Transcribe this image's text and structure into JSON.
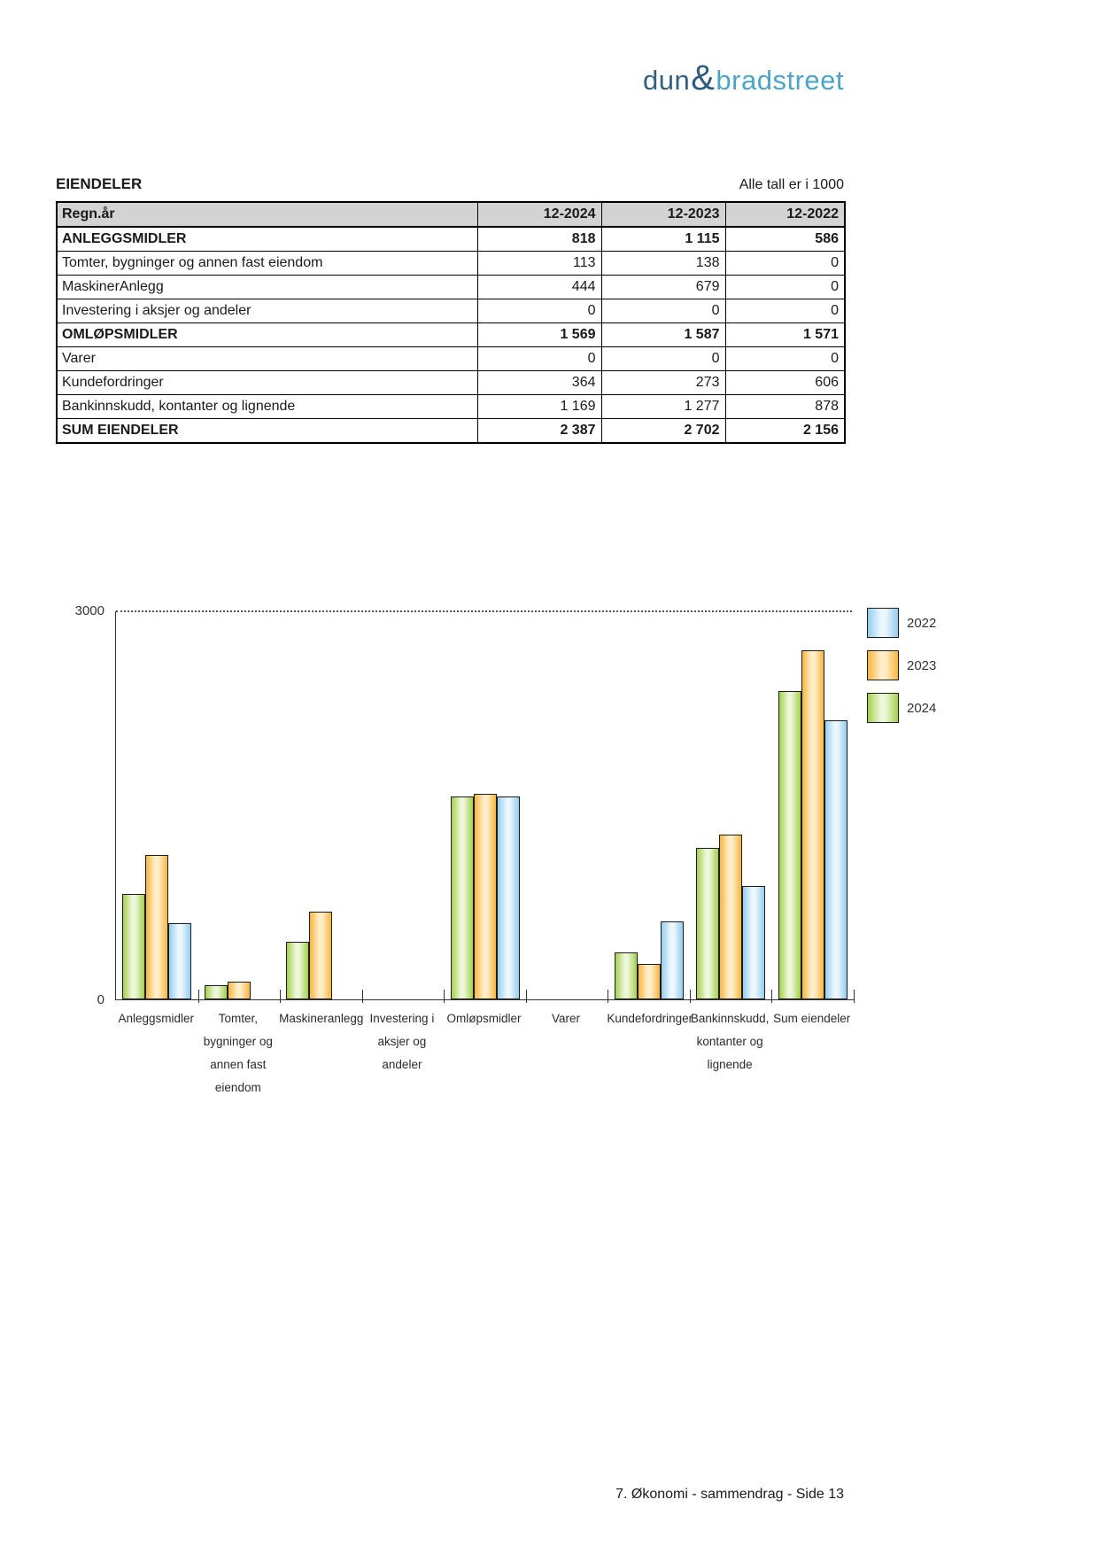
{
  "logo": {
    "part1": "dun",
    "amp": "&",
    "part2": "bradstreet"
  },
  "section": {
    "title": "EIENDELER",
    "note": "Alle tall er i 1000"
  },
  "table": {
    "headers": [
      "Regn.år",
      "12-2024",
      "12-2023",
      "12-2022"
    ],
    "rows": [
      {
        "label": "ANLEGGSMIDLER",
        "values": [
          "818",
          "1 115",
          "586"
        ],
        "bold": true
      },
      {
        "label": "Tomter, bygninger og annen fast eiendom",
        "values": [
          "113",
          "138",
          "0"
        ],
        "bold": false
      },
      {
        "label": "MaskinerAnlegg",
        "values": [
          "444",
          "679",
          "0"
        ],
        "bold": false
      },
      {
        "label": "Investering i aksjer og andeler",
        "values": [
          "0",
          "0",
          "0"
        ],
        "bold": false
      },
      {
        "label": "OMLØPSMIDLER",
        "values": [
          "1 569",
          "1 587",
          "1 571"
        ],
        "bold": true
      },
      {
        "label": "Varer",
        "values": [
          "0",
          "0",
          "0"
        ],
        "bold": false
      },
      {
        "label": "Kundefordringer",
        "values": [
          "364",
          "273",
          "606"
        ],
        "bold": false
      },
      {
        "label": "Bankinnskudd, kontanter og lignende",
        "values": [
          "1 169",
          "1 277",
          "878"
        ],
        "bold": false
      },
      {
        "label": "SUM EIENDELER",
        "values": [
          "2 387",
          "2 702",
          "2 156"
        ],
        "bold": true
      }
    ]
  },
  "chart_data": {
    "type": "bar",
    "title": "",
    "xlabel": "",
    "ylabel": "",
    "ylim": [
      0,
      3000
    ],
    "yticks": [
      "3000",
      "0"
    ],
    "grid": "dotted line at y=3000 only",
    "legend_position": "top-right",
    "legend_order": [
      "2022",
      "2023",
      "2024"
    ],
    "bar_draw_order": [
      "2024",
      "2023",
      "2022"
    ],
    "categories": [
      "Anleggsmidler",
      "Tomter, bygninger og annen fast eiendom",
      "Maskineranlegg",
      "Investering i aksjer og andeler",
      "Omløpsmidler",
      "Varer",
      "Kundefordringer",
      "Bankinnskudd, kontanter og lignende",
      "Sum eiendeler"
    ],
    "category_label_lines": [
      [
        "Anleggsmidler"
      ],
      [
        "Tomter,",
        "bygninger og",
        "annen fast",
        "eiendom"
      ],
      [
        "Maskineranlegg"
      ],
      [
        "Investering i",
        "aksjer og",
        "andeler"
      ],
      [
        "Omløpsmidler"
      ],
      [
        "Varer"
      ],
      [
        "Kundefordringer"
      ],
      [
        "Bankinnskudd,",
        "kontanter og",
        "lignende"
      ],
      [
        "Sum eiendeler"
      ]
    ],
    "series": [
      {
        "name": "2024",
        "color": "#a4d04b",
        "color_light": "#ecf6d8",
        "values": [
          818,
          113,
          444,
          0,
          1569,
          0,
          364,
          1169,
          2387
        ]
      },
      {
        "name": "2023",
        "color": "#f7b53f",
        "color_light": "#fdeec8",
        "values": [
          1115,
          138,
          679,
          0,
          1587,
          0,
          273,
          1277,
          2702
        ]
      },
      {
        "name": "2022",
        "color": "#94cdee",
        "color_light": "#ebf6fd",
        "values": [
          586,
          0,
          0,
          0,
          1571,
          0,
          606,
          878,
          2156
        ]
      }
    ]
  },
  "colors": {
    "logo_dark": "#33607e",
    "logo_light": "#4da4c4",
    "table_header_bg": "#d3d3d3",
    "axis": "#333333"
  },
  "footer": {
    "text": "7. Økonomi - sammendrag - Side 13"
  }
}
